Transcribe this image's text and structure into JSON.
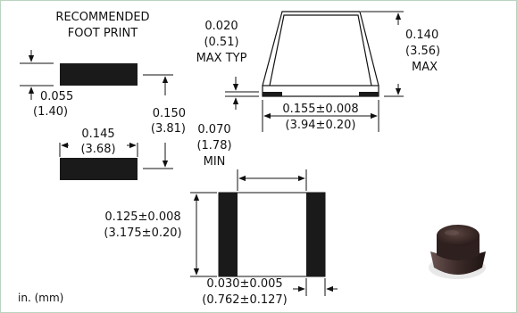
{
  "foot_print": {
    "title_line1": "RECOMMENDED",
    "title_line2": "FOOT PRINT",
    "pad_gap_in": "0.055",
    "pad_gap_mm": "(1.40)",
    "overall_in": "0.150",
    "overall_mm": "(3.81)",
    "pad_width_in": "0.145",
    "pad_width_mm": "(3.68)"
  },
  "side_view": {
    "lead_thickness_in": "0.020",
    "lead_thickness_mm": "(0.51)",
    "lead_thickness_note": "MAX TYP",
    "height_in": "0.140",
    "height_mm": "(3.56)",
    "height_note": "MAX",
    "length_in": "0.155±0.008",
    "length_mm": "(3.94±0.20)"
  },
  "top_view": {
    "terminal_space_in": "0.070",
    "terminal_space_mm": "(1.78)",
    "terminal_space_note": "MIN",
    "width_in": "0.125±0.008",
    "width_mm": "(3.175±0.20)",
    "terminal_width_in": "0.030±0.005",
    "terminal_width_mm": "(0.762±0.127)"
  },
  "units_note": "in. (mm)",
  "colors": {
    "pad": "#1a1a1a",
    "border": "#b9d3c0",
    "component_body": "#3a2a26"
  }
}
